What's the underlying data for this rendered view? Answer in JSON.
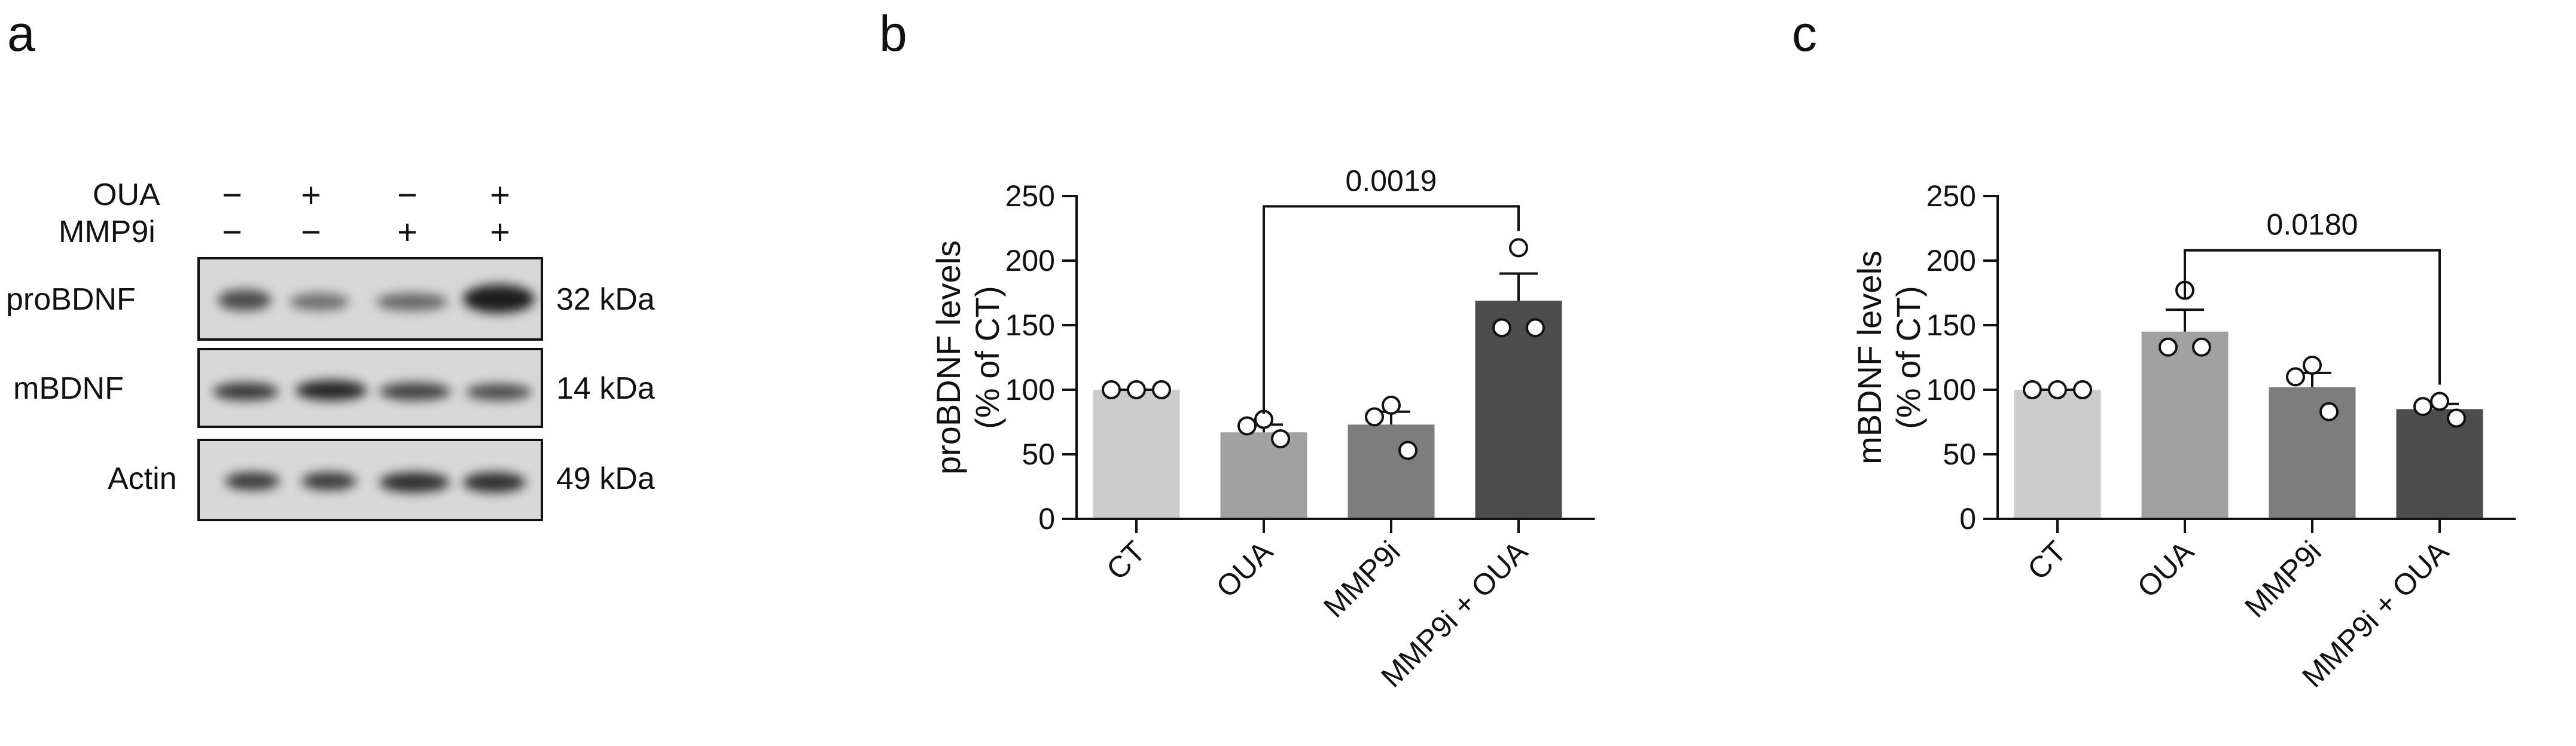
{
  "panels": {
    "a": "a",
    "b": "b",
    "c": "c"
  },
  "western_blot": {
    "treatments": [
      {
        "label": "OUA",
        "signs": [
          "−",
          "+",
          "−",
          "+"
        ]
      },
      {
        "label": "MMP9i",
        "signs": [
          "−",
          "−",
          "+",
          "+"
        ]
      }
    ],
    "blots": [
      {
        "label": "proBDNF",
        "size": "32 kDa",
        "band_intensity": [
          0.75,
          0.55,
          0.6,
          1.0
        ]
      },
      {
        "label": "mBDNF",
        "size": "14 kDa",
        "band_intensity": [
          0.85,
          0.95,
          0.8,
          0.75
        ]
      },
      {
        "label": "Actin",
        "size": "49 kDa",
        "band_intensity": [
          0.85,
          0.85,
          0.9,
          0.9
        ]
      }
    ]
  },
  "chart_data": [
    {
      "type": "bar",
      "panel": "b",
      "ylabel_line1": "proBDNF levels",
      "ylabel_line2": "(% of CT)",
      "categories": [
        "CT",
        "OUA",
        "MMP9i",
        "MMP9i + OUA"
      ],
      "values": [
        100,
        67,
        73,
        169
      ],
      "sem": [
        0,
        6,
        10,
        21
      ],
      "points": [
        [
          100,
          100,
          100
        ],
        [
          77,
          72,
          62
        ],
        [
          88,
          79,
          53
        ],
        [
          210,
          148,
          148
        ]
      ],
      "bar_colors": [
        "#cccccc",
        "#a1a1a1",
        "#7d7d7d",
        "#4d4d4d"
      ],
      "ylim": [
        0,
        250
      ],
      "yticks": [
        0,
        50,
        100,
        150,
        200,
        250
      ],
      "comparison": {
        "from": 1,
        "to": 3,
        "label": "0.0019",
        "y": 242
      }
    },
    {
      "type": "bar",
      "panel": "c",
      "ylabel_line1": "mBDNF levels",
      "ylabel_line2": "(% of CT)",
      "categories": [
        "CT",
        "OUA",
        "MMP9i",
        "MMP9i + OUA"
      ],
      "values": [
        100,
        145,
        102,
        85
      ],
      "sem": [
        0,
        17,
        11,
        4
      ],
      "points": [
        [
          100,
          100,
          100
        ],
        [
          177,
          133,
          133
        ],
        [
          119,
          110,
          83
        ],
        [
          91,
          87,
          78
        ]
      ],
      "bar_colors": [
        "#cccccc",
        "#a1a1a1",
        "#7d7d7d",
        "#4d4d4d"
      ],
      "ylim": [
        0,
        250
      ],
      "yticks": [
        0,
        50,
        100,
        150,
        200,
        250
      ],
      "comparison": {
        "from": 1,
        "to": 3,
        "label": "0.0180",
        "y": 208
      }
    }
  ]
}
